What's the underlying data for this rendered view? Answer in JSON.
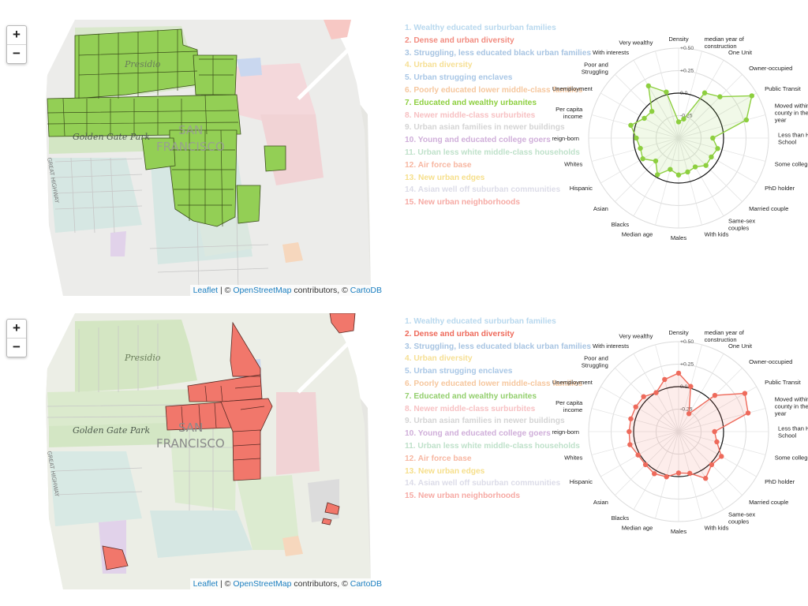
{
  "attribution": {
    "leaflet": "Leaflet",
    "sep": " | © ",
    "osm": "OpenStreetMap",
    "contrib": " contributors, © ",
    "carto": "CartoDB"
  },
  "map_labels": {
    "presidio": "Presidio",
    "golden_gate_park": "Golden Gate Park",
    "great_highway": "GREAT HIGHWAY",
    "san_francisco_line1": "SAN",
    "san_francisco_line2": "FRANCISCO"
  },
  "zoom": {
    "in": "+",
    "out": "−"
  },
  "clusters": [
    {
      "label": "1. Wealthy educated surburban families",
      "color": "#b8d8ee"
    },
    {
      "label": "2. Dense and urban diversity",
      "color": "#f28c80"
    },
    {
      "label": "3. Struggling, less educated black urban families",
      "color": "#a7c4e2"
    },
    {
      "label": "4. Urban diversity",
      "color": "#f6df93"
    },
    {
      "label": "5. Urban strugging enclaves",
      "color": "#a9c7e6"
    },
    {
      "label": "6. Poorly educated lower middle-class families",
      "color": "#f6c79e"
    },
    {
      "label": "7. Educated and wealthy urbanites",
      "color": "#93cf6d"
    },
    {
      "label": "8. Newer middle-class surburbites",
      "color": "#f7c1c3"
    },
    {
      "label": "9. Urban asian families in newer buildings",
      "color": "#d4d4d4"
    },
    {
      "label": "10. Young and educated college goers",
      "color": "#d0afda"
    },
    {
      "label": "11. Urban less white middle-class households",
      "color": "#bfe1ca"
    },
    {
      "label": "12. Air force base",
      "color": "#f7b7a2"
    },
    {
      "label": "13. New urban edges",
      "color": "#f6df8b"
    },
    {
      "label": "14. Asian well off suburban communities",
      "color": "#dcdce8"
    },
    {
      "label": "15. New urban neighborhoods",
      "color": "#f6aaa4"
    }
  ],
  "panels": [
    {
      "selected_index": 6,
      "accent": "#8dcf3f"
    },
    {
      "selected_index": 1,
      "accent": "#ee6a5b"
    }
  ],
  "radar_axes": [
    "Density",
    "median year of construction",
    "One Unit",
    "Owner-occupied",
    "Public Transit",
    "Moved within county in the year",
    "Less than High School",
    "Some college",
    "PhD holder",
    "Married couple",
    "Same-sex couples",
    "With kids",
    "Males",
    "Median age",
    "Blacks",
    "Asian",
    "Hispanic",
    "Whites",
    "Foreign-born",
    "Per capita income",
    "Unemployment",
    "Poor and Struggling",
    "With interests",
    "Very wealthy"
  ],
  "radar_ticks": [
    "+0.50",
    "+0.25",
    "0.0",
    "-0.25"
  ],
  "chart_data": [
    {
      "type": "radar",
      "series": [
        {
          "values": [
            -0.32,
            -0.28,
            0.08,
            0.15,
            0.44,
            0.28,
            -0.12,
            -0.05,
            -0.08,
            -0.07,
            -0.13,
            -0.11,
            -0.09,
            -0.14,
            -0.03,
            -0.14,
            -0.04,
            -0.06,
            -0.03,
            0.05,
            -0.06,
            -0.08,
            0.17,
            0.03
          ]
        }
      ],
      "axes_ref": "radar_axes",
      "ticks": [
        0.5,
        0.25,
        0.0,
        -0.25
      ],
      "range": [
        -0.5,
        0.5
      ],
      "reference_ring": 0.0
    },
    {
      "type": "radar",
      "series": [
        {
          "values": [
            0.15,
            0.02,
            -0.27,
            0.07,
            0.35,
            0.3,
            -0.1,
            -0.06,
            0.05,
            0.02,
            0.1,
            -0.02,
            -0.04,
            0.02,
            0.04,
            0.02,
            0.02,
            0.06,
            0.05,
            0.05,
            0.05,
            0.05,
            0.0,
            0.1
          ]
        }
      ],
      "axes_ref": "radar_axes",
      "ticks": [
        0.5,
        0.25,
        0.0,
        -0.25
      ],
      "range": [
        -0.5,
        0.5
      ],
      "reference_ring": 0.0
    }
  ]
}
